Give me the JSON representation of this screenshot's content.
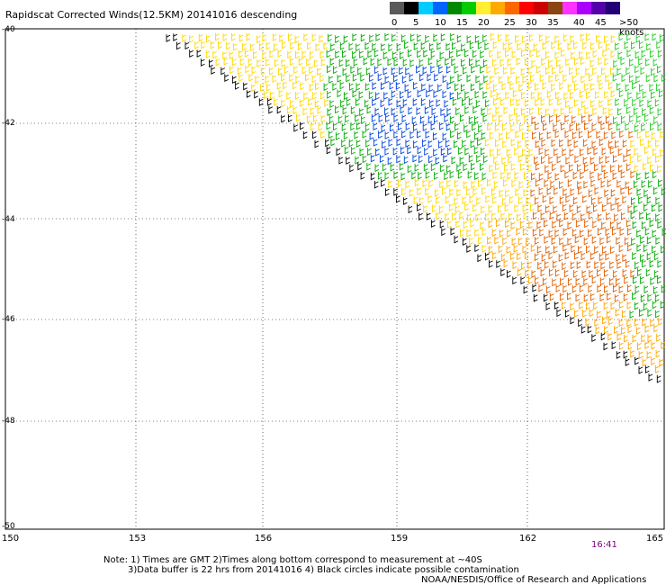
{
  "title": "Rapidscat Corrected Winds(12.5KM) 20141016 descending",
  "legend": {
    "labels": [
      "0",
      "5",
      "10",
      "15",
      "20",
      "25",
      "30",
      "35",
      "40",
      "45",
      ">50 knots"
    ],
    "colors": [
      "#5a5a5a",
      "#000000",
      "#00ccff",
      "#0066ff",
      "#008800",
      "#00cc00",
      "#ffee33",
      "#ffaa00",
      "#ff6600",
      "#ff0000",
      "#cc0000",
      "#8b4513",
      "#ff33ff",
      "#aa00ff",
      "#5500aa",
      "#220077"
    ]
  },
  "axes": {
    "x_labels": [
      "150",
      "153",
      "156",
      "159",
      "162",
      "165"
    ],
    "y_labels": [
      "-40",
      "-42",
      "-44",
      "-46",
      "-48",
      "-50"
    ]
  },
  "time_label": "16:41",
  "notes": {
    "line1": "Note: 1) Times are GMT 2)Times along bottom correspond to measurement at ~40S",
    "line2": "3)Data buffer is 22 hrs from 20141016 4) Black circles indicate possible contamination",
    "line3": "NOAA/NESDIS/Office of Research and Applications"
  },
  "wind_colors": {
    "black": "#000000",
    "yellow": "#ffd700",
    "orange": "#ffa500",
    "darkorange": "#e06000",
    "green": "#00aa00",
    "lightgreen": "#22cc22",
    "blue": "#0044dd"
  }
}
